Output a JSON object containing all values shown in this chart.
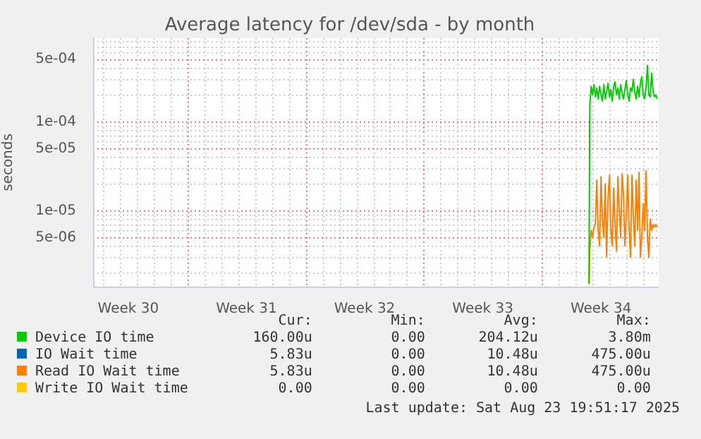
{
  "chart_data": {
    "type": "line",
    "title": "Average latency for /dev/sda - by month",
    "ylabel": "seconds",
    "log": "y",
    "grid": true,
    "legend": "bottom",
    "marker": "none",
    "xlim": [
      "2025-07-21T10:00",
      "2025-08-23T22:00"
    ],
    "xticks": [
      {
        "value": "2025-07-23T12:00",
        "label": "Week 30"
      },
      {
        "value": "2025-07-27",
        "label": null
      },
      {
        "value": "2025-07-30T12:00",
        "label": "Week 31"
      },
      {
        "value": "2025-08-03",
        "label": null
      },
      {
        "value": "2025-08-06T12:00",
        "label": "Week 32"
      },
      {
        "value": "2025-08-10",
        "label": null
      },
      {
        "value": "2025-08-13T12:00",
        "label": "Week 33"
      },
      {
        "value": "2025-08-17",
        "label": null
      },
      {
        "value": "2025-08-20T12:00",
        "label": "Week 34"
      }
    ],
    "ylim": [
      1.4e-06,
      0.00087
    ],
    "yticks": [
      {
        "value": 5e-06,
        "label": "5e-06"
      },
      {
        "value": 1e-05,
        "label": "1e-05"
      },
      {
        "value": 5e-05,
        "label": "5e-05"
      },
      {
        "value": 0.0001,
        "label": "1e-04"
      },
      {
        "value": 0.0005,
        "label": "5e-04"
      }
    ],
    "x": [
      "2025-08-19T19:00",
      "2025-08-19T20:00",
      "2025-08-19T22:00",
      "2025-08-20T00:00",
      "2025-08-20T02:00",
      "2025-08-20T04:00",
      "2025-08-20T06:00",
      "2025-08-20T08:00",
      "2025-08-20T10:00",
      "2025-08-20T12:00",
      "2025-08-20T14:00",
      "2025-08-20T16:00",
      "2025-08-20T18:00",
      "2025-08-20T20:00",
      "2025-08-20T22:00",
      "2025-08-21T00:00",
      "2025-08-21T02:00",
      "2025-08-21T04:00",
      "2025-08-21T06:00",
      "2025-08-21T08:00",
      "2025-08-21T10:00",
      "2025-08-21T12:00",
      "2025-08-21T14:00",
      "2025-08-21T16:00",
      "2025-08-21T18:00",
      "2025-08-21T20:00",
      "2025-08-21T22:00",
      "2025-08-22T00:00",
      "2025-08-22T02:00",
      "2025-08-22T04:00",
      "2025-08-22T06:00",
      "2025-08-22T08:00",
      "2025-08-22T10:00",
      "2025-08-22T12:00",
      "2025-08-22T14:00",
      "2025-08-22T16:00",
      "2025-08-22T18:00",
      "2025-08-22T20:00",
      "2025-08-22T22:00",
      "2025-08-23T00:00",
      "2025-08-23T02:00",
      "2025-08-23T04:00",
      "2025-08-23T06:00",
      "2025-08-23T08:00",
      "2025-08-23T10:00",
      "2025-08-23T12:00",
      "2025-08-23T14:00",
      "2025-08-23T16:00",
      "2025-08-23T18:00",
      "2025-08-23T20:00"
    ],
    "series": [
      {
        "name": "Device IO time",
        "color": "#00cc00",
        "values": [
          1.5e-06,
          0.00015,
          0.00025,
          0.0002,
          0.00026,
          0.00019,
          0.00024,
          0.00018,
          0.00025,
          0.0002,
          0.00017,
          0.00026,
          0.00018,
          0.00022,
          0.00027,
          0.00019,
          0.00023,
          0.00017,
          0.00025,
          0.00028,
          0.0002,
          0.00024,
          0.00018,
          0.00026,
          0.00021,
          0.00018,
          0.00023,
          0.00029,
          0.0002,
          0.00017,
          0.00024,
          0.00022,
          0.0003,
          0.00021,
          0.00018,
          0.00025,
          0.00019,
          0.00027,
          0.00032,
          0.0002,
          0.00018,
          0.00024,
          0.00043,
          0.0002,
          0.00019,
          0.00035,
          0.00022,
          0.00019,
          0.0002,
          0.00018
        ]
      },
      {
        "name": "IO Wait time",
        "color": "#0066b3",
        "values": [
          null,
          null,
          null,
          null,
          null,
          null,
          null,
          null,
          null,
          null,
          null,
          null,
          null,
          null,
          null,
          null,
          null,
          null,
          null,
          null,
          null,
          null,
          null,
          null,
          null,
          null,
          null,
          null,
          null,
          null,
          null,
          null,
          null,
          null,
          null,
          null,
          null,
          null,
          null,
          null,
          null,
          null,
          null,
          null,
          null,
          null,
          null,
          null,
          null,
          null
        ]
      },
      {
        "name": "Read IO Wait time",
        "color": "#ff8000",
        "values": [
          1.5e-06,
          3.5e-06,
          6e-06,
          5e-06,
          6.5e-06,
          7e-06,
          2.2e-05,
          6e-06,
          4e-06,
          2.4e-05,
          8e-06,
          5e-06,
          2e-05,
          3e-06,
          1.4e-05,
          2.5e-05,
          6e-06,
          4e-06,
          1.8e-05,
          7e-06,
          3.5e-06,
          2.4e-05,
          1e-05,
          5e-06,
          2.6e-05,
          1.5e-05,
          4e-06,
          9e-06,
          2.5e-05,
          6e-06,
          3e-06,
          2.5e-05,
          8e-06,
          4e-06,
          2.2e-05,
          6e-06,
          2.7e-05,
          3e-06,
          5e-06,
          1.2e-05,
          6e-06,
          2.8e-05,
          5e-06,
          3e-06,
          8e-06,
          6e-06,
          7e-06,
          6.5e-06,
          7e-06,
          6.5e-06
        ]
      },
      {
        "name": "Write IO Wait time",
        "color": "#ffcc00",
        "values": [
          null,
          null,
          null,
          null,
          null,
          null,
          null,
          null,
          null,
          null,
          null,
          null,
          null,
          null,
          null,
          null,
          null,
          null,
          null,
          null,
          null,
          null,
          null,
          null,
          null,
          null,
          null,
          null,
          null,
          null,
          null,
          null,
          null,
          null,
          null,
          null,
          null,
          null,
          null,
          null,
          null,
          null,
          null,
          null,
          null,
          null,
          null,
          null,
          null,
          null
        ]
      }
    ],
    "annotations": [
      "Cur:",
      "Min:",
      "Avg:",
      "Max:",
      "160.00u",
      "0.00",
      "204.12u",
      "3.80m",
      "5.83u",
      "0.00",
      "10.48u",
      "475.00u",
      "5.83u",
      "0.00",
      "10.48u",
      "475.00u",
      "0.00",
      "0.00",
      "0.00",
      "0.00",
      "Last update: Sat Aug 23 19:51:17 2025"
    ]
  }
}
